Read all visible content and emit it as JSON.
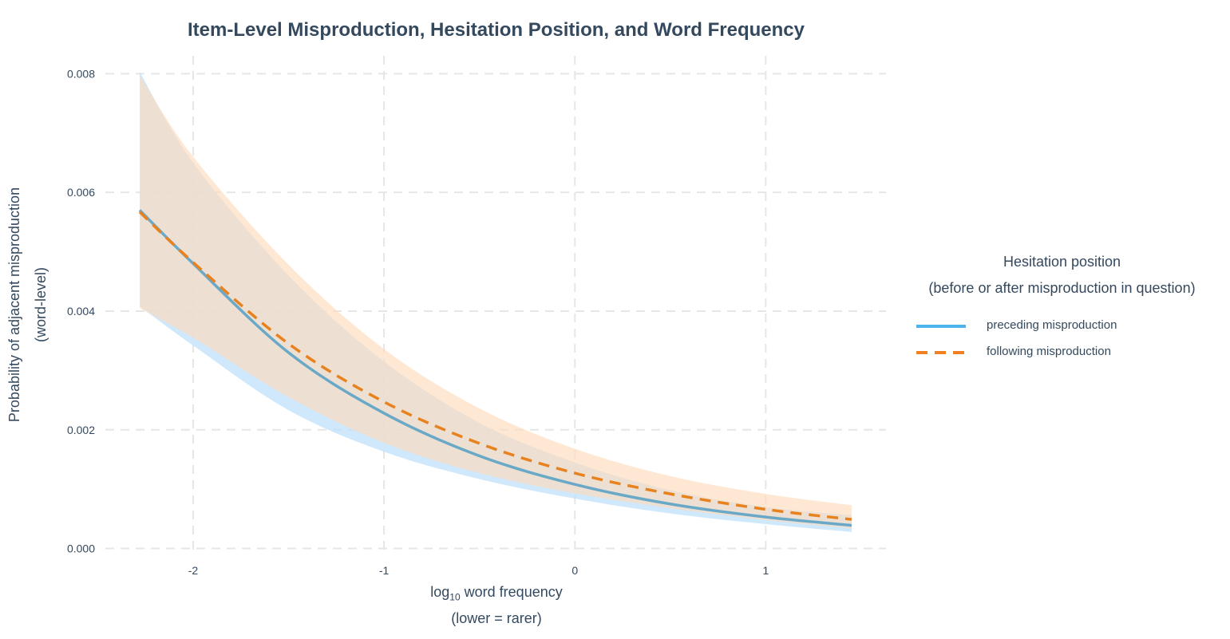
{
  "chart_data": {
    "type": "line",
    "title": "Item-Level Misproduction, Hesitation Position, and Word Frequency",
    "xlabel_prefix": "log",
    "xlabel_sub": "10",
    "xlabel_rest": " word frequency",
    "xlabel_line2": "(lower = rarer)",
    "ylabel_line1": "Probability of adjacent misproduction",
    "ylabel_line2": "(word-level)",
    "xlim": [
      -2.46,
      1.63
    ],
    "ylim": [
      -0.0001,
      0.0083
    ],
    "xticks": [
      -2,
      -1,
      0,
      1
    ],
    "xtick_labels": [
      "-2",
      "-1",
      "0",
      "1"
    ],
    "yticks": [
      0,
      0.002,
      0.004,
      0.006,
      0.008
    ],
    "ytick_labels": [
      "0.000",
      "0.002",
      "0.004",
      "0.006",
      "0.008"
    ],
    "grid": true,
    "legend": {
      "title_line1": "Hesitation position",
      "title_line2": "(before or after misproduction in question)",
      "placement": "right"
    },
    "series": [
      {
        "name": "preceding misproduction",
        "color": "#4db3ed",
        "line_color": "#6aa8c8",
        "dash": "solid",
        "ribbon_color": "#bfe0fa",
        "x": [
          -2.28,
          -2.0,
          -1.5,
          -1.0,
          -0.5,
          0.0,
          0.5,
          1.0,
          1.45
        ],
        "y": [
          0.0057,
          0.0048,
          0.0033,
          0.00228,
          0.00156,
          0.00108,
          0.00075,
          0.00053,
          0.00039
        ],
        "lower": [
          0.00408,
          0.00342,
          0.00233,
          0.00163,
          0.00117,
          0.00084,
          0.00059,
          0.00041,
          0.00028
        ],
        "upper": [
          0.00803,
          0.0065,
          0.0046,
          0.00315,
          0.00212,
          0.00145,
          0.00098,
          0.0007,
          0.00056
        ]
      },
      {
        "name": "following misproduction",
        "color": "#f08020",
        "line_color": "#e8821f",
        "dash": "dashed",
        "ribbon_color": "#fddcbd",
        "x": [
          -2.28,
          -2.0,
          -1.5,
          -1.0,
          -0.5,
          0.0,
          0.5,
          1.0,
          1.45
        ],
        "y": [
          0.00567,
          0.00482,
          0.00345,
          0.00247,
          0.00177,
          0.00127,
          0.00092,
          0.00066,
          0.00049
        ],
        "lower": [
          0.00405,
          0.00355,
          0.00255,
          0.00178,
          0.00127,
          0.00093,
          0.00068,
          0.00048,
          0.00034
        ],
        "upper": [
          0.00797,
          0.0066,
          0.00478,
          0.00336,
          0.00236,
          0.00168,
          0.00122,
          0.00092,
          0.00073
        ]
      }
    ]
  }
}
